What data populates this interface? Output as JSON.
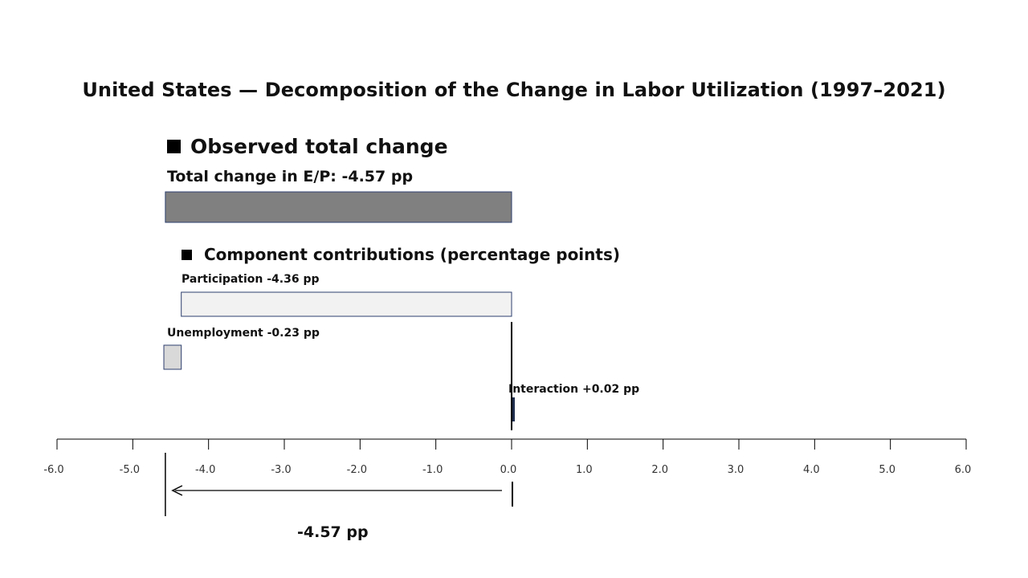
{
  "chart_data": {
    "type": "bar",
    "title": "United States — Decomposition of the Change in Labor Utilization (1997–2021)",
    "sections": {
      "observed": "Observed total change",
      "components": "Component contributions (percentage points)"
    },
    "total": {
      "label": "Total change in E/P: -4.57 pp",
      "value": -4.57,
      "annotation": "-4.57 pp"
    },
    "series": [
      {
        "name": "Participation",
        "label": "Participation -4.36 pp",
        "value": -4.36,
        "color": "#f2f2f2"
      },
      {
        "name": "Unemployment",
        "label": "Unemployment -0.23 pp",
        "value": -0.23,
        "color": "#d9d9d9"
      },
      {
        "name": "Interaction",
        "label": "Interaction +0.02 pp",
        "value": 0.02,
        "color": "#1f2d4d"
      }
    ],
    "colors": {
      "total_bar": "#808080",
      "bar_border": "#2e3f6e"
    },
    "xlim": [
      -6,
      6
    ],
    "xticks": [
      -6,
      -5,
      -4,
      -3,
      -2,
      -1,
      0,
      1,
      2,
      3,
      4,
      5,
      6
    ],
    "xtick_labels": [
      "-6.0",
      "-5.0",
      "-4.0",
      "-3.0",
      "-2.0",
      "-1.0",
      "0.0",
      "1.0",
      "2.0",
      "3.0",
      "4.0",
      "5.0",
      "6.0"
    ],
    "grid": false,
    "legend": "none"
  }
}
